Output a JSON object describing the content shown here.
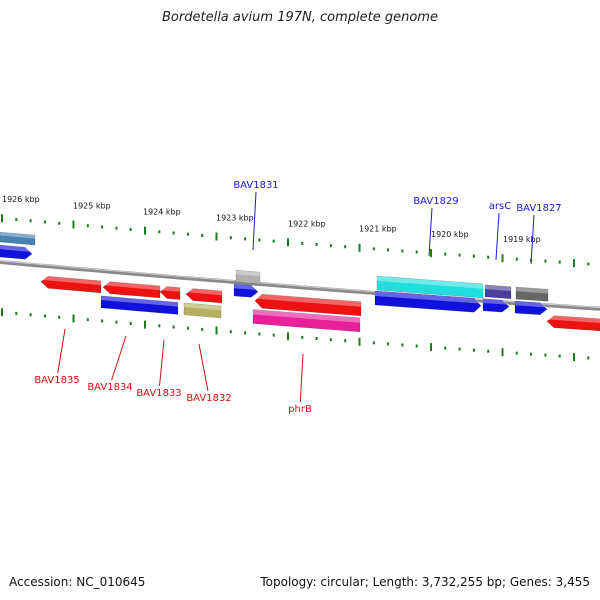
{
  "title": "Bordetella avium 197N, complete genome",
  "footer": {
    "accession": "Accession: NC_010645",
    "summary": "Topology: circular; Length: 3,732,255 bp; Genes: 3,455"
  },
  "colors": {
    "backbone": "#8a8a8a",
    "tick": "#1f7a1f",
    "label_above": "#1a1acc",
    "label_below": "#cc1111",
    "kbp_text": "#111111"
  },
  "scale_labels": [
    "1926 kbp",
    "1925 kbp",
    "1924 kbp",
    "1923 kbp",
    "1922 kbp",
    "1921 kbp",
    "1920 kbp",
    "1919 kbp"
  ],
  "genes_above": [
    {
      "name": "BAV1831",
      "color": "#1a1acc"
    },
    {
      "name": "BAV1829",
      "color": "#1a1acc"
    },
    {
      "name": "arsC",
      "color": "#1a1acc"
    },
    {
      "name": "BAV1827",
      "color": "#1a1acc"
    }
  ],
  "genes_below": [
    {
      "name": "BAV1835",
      "color": "#cc1111"
    },
    {
      "name": "BAV1834",
      "color": "#cc1111"
    },
    {
      "name": "BAV1833",
      "color": "#cc1111"
    },
    {
      "name": "BAV1832",
      "color": "#cc1111"
    },
    {
      "name": "phrB",
      "color": "#cc1111"
    }
  ],
  "feature_colors": {
    "red": "#ee1111",
    "blue": "#1111dd",
    "cyan": "#22dddd",
    "grey_light": "#b0b0b0",
    "grey_dark": "#666666",
    "steel": "#4682b4",
    "slate": "#4a3f9a",
    "olive": "#b5b060",
    "pink": "#e8209a"
  }
}
